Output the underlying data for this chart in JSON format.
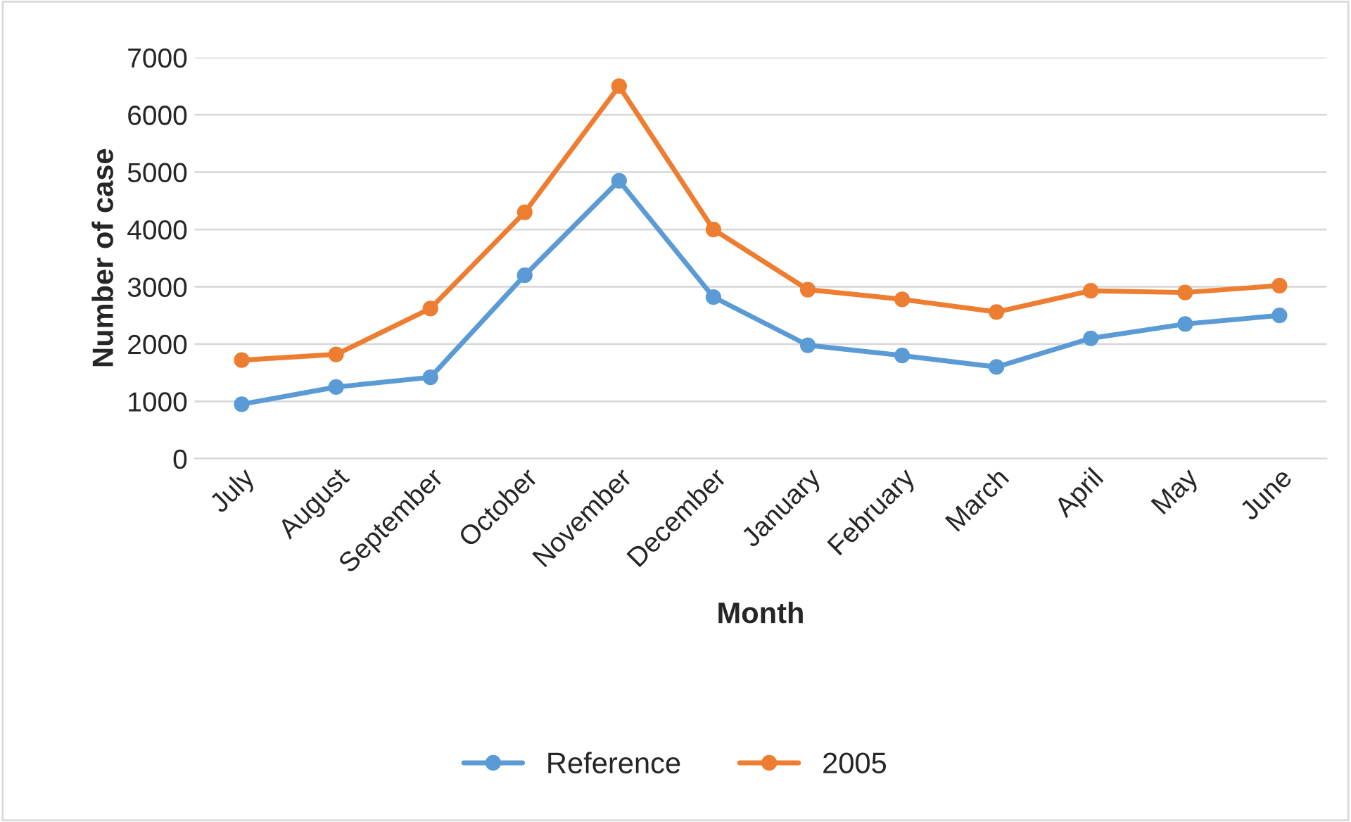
{
  "chart_data": {
    "type": "line",
    "xlabel": "Month",
    "ylabel": "Number of case",
    "categories": [
      "July",
      "August",
      "September",
      "October",
      "November",
      "December",
      "January",
      "February",
      "March",
      "April",
      "May",
      "June"
    ],
    "series": [
      {
        "name": "Reference",
        "color": "#5b9bd5",
        "values": [
          950,
          1250,
          1420,
          3200,
          4850,
          2820,
          1980,
          1800,
          1600,
          2100,
          2350,
          2500
        ]
      },
      {
        "name": "2005",
        "color": "#ed7d31",
        "values": [
          1720,
          1820,
          2620,
          4300,
          6500,
          4000,
          2950,
          2780,
          2560,
          2930,
          2900,
          3020
        ]
      }
    ],
    "ylim": [
      0,
      7000
    ],
    "yticks": [
      0,
      1000,
      2000,
      3000,
      4000,
      5000,
      6000,
      7000
    ],
    "grid": "y",
    "legend": "bottom",
    "marker": "circle",
    "line_style": "solid"
  }
}
